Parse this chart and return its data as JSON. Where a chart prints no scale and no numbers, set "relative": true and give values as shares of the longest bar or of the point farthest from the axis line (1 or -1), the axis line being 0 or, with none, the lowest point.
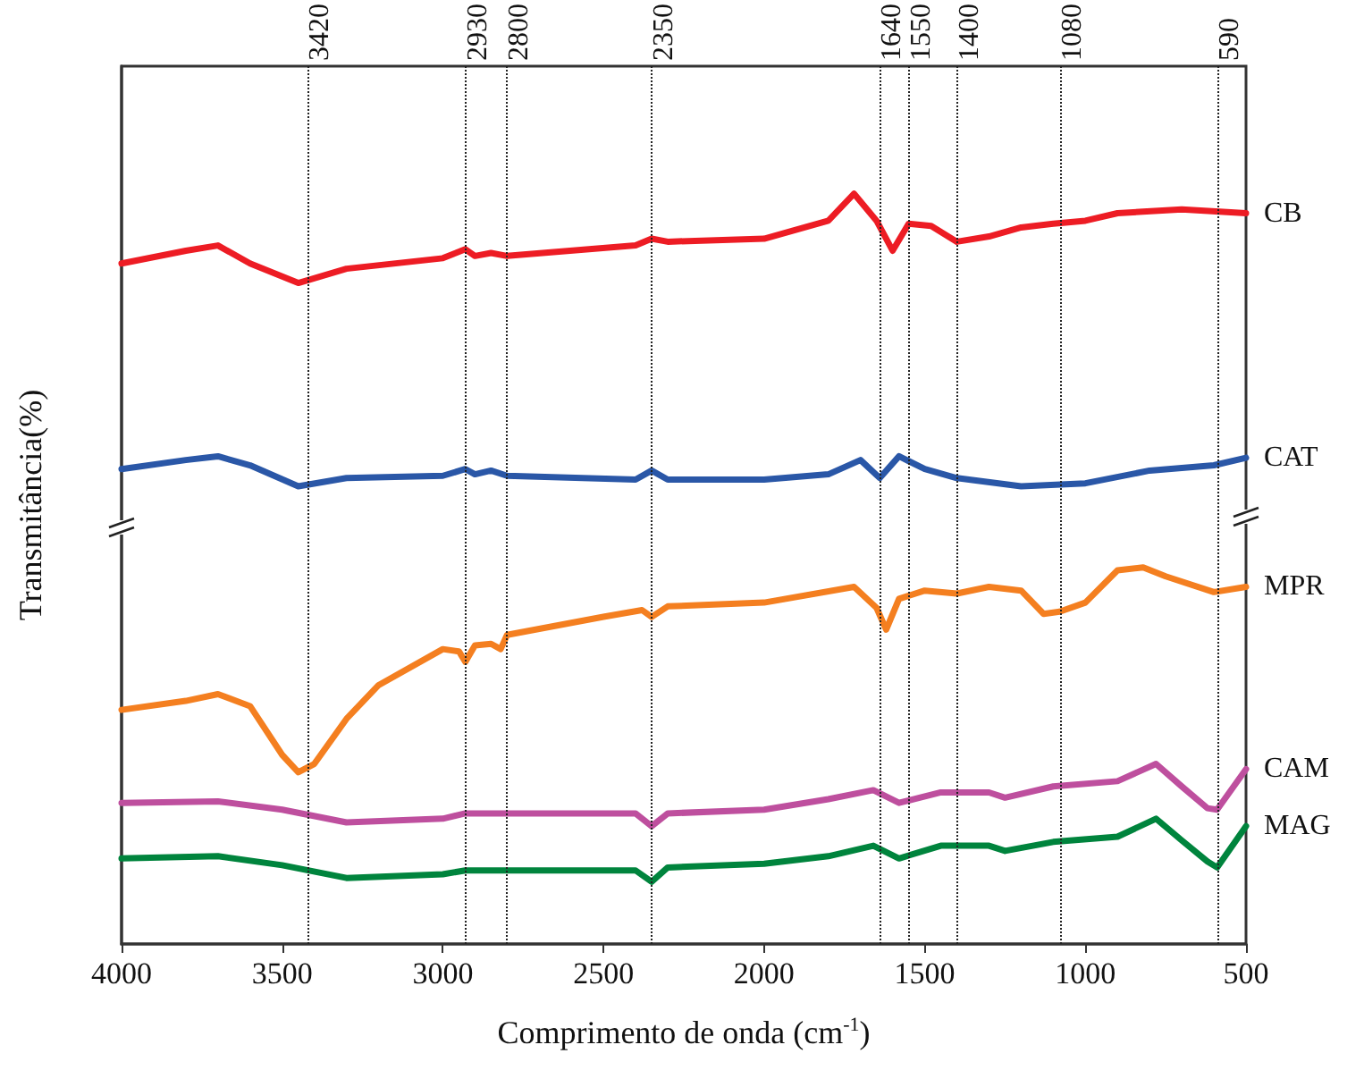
{
  "chart_data": {
    "type": "line",
    "relative": true,
    "xlabel": "Comprimento de onda (cm$^{-1}$)",
    "ylabel": "Transmitância(%)",
    "xlim": [
      4000,
      500
    ],
    "xticks": [
      4000,
      3500,
      3000,
      2500,
      2000,
      1500,
      1000,
      500
    ],
    "legend": false,
    "grid": false,
    "marker": "none",
    "line_style": "solid",
    "ref_lines": [
      {
        "axis": "x",
        "value": 3420,
        "label": "3420",
        "line_style": "dotted"
      },
      {
        "axis": "x",
        "value": 2930,
        "label": "2930",
        "line_style": "dotted"
      },
      {
        "axis": "x",
        "value": 2800,
        "label": "2800",
        "line_style": "dotted"
      },
      {
        "axis": "x",
        "value": 2350,
        "label": "2350",
        "line_style": "dotted"
      },
      {
        "axis": "x",
        "value": 1640,
        "label": "1640",
        "line_style": "dotted"
      },
      {
        "axis": "x",
        "value": 1550,
        "label": "1550",
        "line_style": "dotted"
      },
      {
        "axis": "x",
        "value": 1400,
        "label": "1400",
        "line_style": "dotted"
      },
      {
        "axis": "x",
        "value": 1080,
        "label": "1080",
        "line_style": "dotted"
      },
      {
        "axis": "x",
        "value": 590,
        "label": "590",
        "line_style": "dotted"
      }
    ],
    "series": [
      {
        "name": "CB",
        "color": "#ed1c24",
        "x": [
          4000,
          3800,
          3700,
          3600,
          3450,
          3300,
          3000,
          2930,
          2900,
          2850,
          2800,
          2400,
          2350,
          2300,
          2000,
          1800,
          1720,
          1650,
          1600,
          1550,
          1480,
          1400,
          1300,
          1200,
          1100,
          1000,
          900,
          700,
          500
        ],
        "values": [
          0.907,
          0.924,
          0.931,
          0.907,
          0.881,
          0.9,
          0.914,
          0.926,
          0.917,
          0.921,
          0.917,
          0.931,
          0.94,
          0.936,
          0.94,
          0.964,
          1.0,
          0.964,
          0.924,
          0.96,
          0.957,
          0.936,
          0.943,
          0.955,
          0.96,
          0.964,
          0.974,
          0.979,
          0.974
        ]
      },
      {
        "name": "CAT",
        "color": "#2a57a7",
        "x": [
          4000,
          3800,
          3700,
          3600,
          3450,
          3300,
          3000,
          2930,
          2900,
          2850,
          2800,
          2400,
          2350,
          2300,
          2000,
          1800,
          1700,
          1640,
          1580,
          1500,
          1400,
          1200,
          1000,
          800,
          600,
          500
        ],
        "values": [
          0.633,
          0.645,
          0.65,
          0.638,
          0.61,
          0.621,
          0.624,
          0.633,
          0.626,
          0.631,
          0.624,
          0.619,
          0.631,
          0.619,
          0.619,
          0.626,
          0.645,
          0.621,
          0.65,
          0.633,
          0.621,
          0.61,
          0.614,
          0.631,
          0.638,
          0.648
        ]
      },
      {
        "name": "MPR",
        "color": "#f47f20",
        "x": [
          4000,
          3800,
          3700,
          3600,
          3500,
          3450,
          3400,
          3300,
          3200,
          3000,
          2950,
          2930,
          2900,
          2850,
          2820,
          2800,
          2500,
          2380,
          2350,
          2300,
          2000,
          1720,
          1650,
          1620,
          1580,
          1500,
          1400,
          1300,
          1200,
          1130,
          1080,
          1000,
          900,
          820,
          750,
          600,
          500
        ],
        "values": [
          0.312,
          0.324,
          0.333,
          0.317,
          0.252,
          0.229,
          0.24,
          0.3,
          0.345,
          0.393,
          0.39,
          0.376,
          0.398,
          0.4,
          0.393,
          0.412,
          0.436,
          0.445,
          0.436,
          0.45,
          0.455,
          0.476,
          0.448,
          0.419,
          0.46,
          0.471,
          0.467,
          0.476,
          0.471,
          0.44,
          0.443,
          0.455,
          0.498,
          0.502,
          0.49,
          0.469,
          0.476
        ]
      },
      {
        "name": "CAM",
        "color": "#be4f9e",
        "x": [
          4000,
          3700,
          3500,
          3300,
          3000,
          2930,
          2400,
          2350,
          2300,
          2000,
          1800,
          1660,
          1580,
          1450,
          1300,
          1250,
          1100,
          900,
          780,
          700,
          620,
          590,
          500
        ],
        "values": [
          0.188,
          0.19,
          0.179,
          0.162,
          0.167,
          0.174,
          0.174,
          0.157,
          0.174,
          0.179,
          0.193,
          0.205,
          0.188,
          0.202,
          0.202,
          0.195,
          0.21,
          0.217,
          0.24,
          0.21,
          0.181,
          0.179,
          0.233
        ]
      },
      {
        "name": "MAG",
        "color": "#00843d",
        "x": [
          4000,
          3700,
          3500,
          3300,
          3000,
          2930,
          2400,
          2350,
          2300,
          2000,
          1800,
          1660,
          1580,
          1450,
          1300,
          1250,
          1100,
          900,
          780,
          700,
          620,
          590,
          500
        ],
        "values": [
          0.114,
          0.117,
          0.105,
          0.088,
          0.093,
          0.098,
          0.098,
          0.083,
          0.102,
          0.107,
          0.117,
          0.131,
          0.114,
          0.131,
          0.131,
          0.124,
          0.136,
          0.143,
          0.167,
          0.138,
          0.11,
          0.102,
          0.157
        ]
      }
    ]
  }
}
